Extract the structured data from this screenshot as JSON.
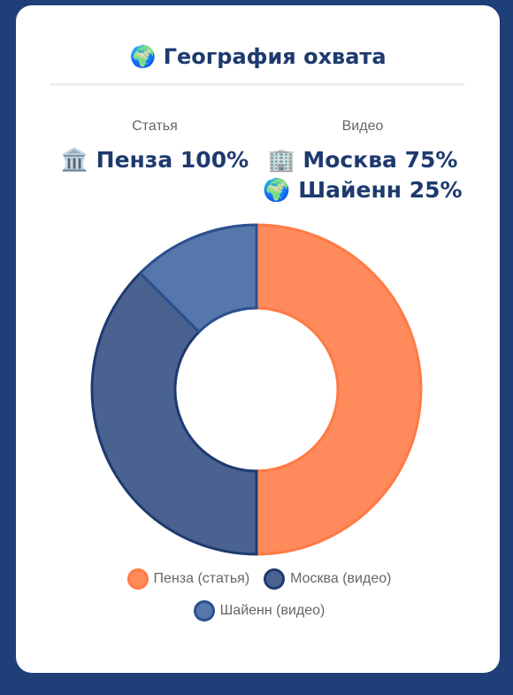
{
  "header": {
    "title": "🌍 География охвата"
  },
  "stats": [
    {
      "label": "Статья",
      "lines": [
        "🏛️ Пенза 100%"
      ]
    },
    {
      "label": "Видео",
      "lines": [
        "🏢 Москва 75%",
        "🌍 Шайенн 25%"
      ]
    }
  ],
  "chart_data": {
    "type": "doughnut",
    "categories": [
      "Пенза (статья)",
      "Москва (видео)",
      "Шайенн (видео)"
    ],
    "values": [
      100,
      75,
      25
    ],
    "colors": [
      "#ff8a5b",
      "#4a6290",
      "#5577ab"
    ],
    "borders": [
      "#ff7a45",
      "#1e3a6e",
      "#2b4f8f"
    ]
  }
}
